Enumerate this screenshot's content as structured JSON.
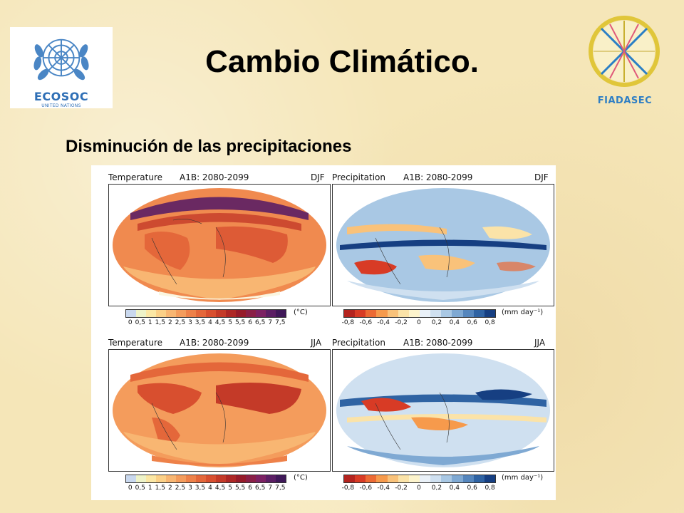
{
  "slide": {
    "title": "Cambio Climático.",
    "subtitle": "Disminución de las precipitaciones"
  },
  "logos": {
    "left": {
      "name": "ECOSOC",
      "org": "UNITED NATIONS",
      "icon": "un-emblem-icon"
    },
    "right": {
      "name": "FIADASEC",
      "icon": "fiadasec-wheel-icon"
    }
  },
  "figure": {
    "rows": [
      {
        "season": "DJF",
        "temperature": {
          "title": "Temperature",
          "scenario": "A1B: 2080-2099",
          "season": "DJF"
        },
        "precipitation": {
          "title": "Precipitation",
          "scenario": "A1B: 2080-2099",
          "season": "DJF"
        }
      },
      {
        "season": "JJA",
        "temperature": {
          "title": "Temperature",
          "scenario": "A1B: 2080-2099",
          "season": "JJA"
        },
        "precipitation": {
          "title": "Precipitation",
          "scenario": "A1B: 2080-2099",
          "season": "JJA"
        }
      }
    ],
    "temperature_scale": {
      "unit": "(°C)",
      "ticks": [
        "0",
        "0,5",
        "1",
        "1,5",
        "2",
        "2,5",
        "3",
        "3,5",
        "4",
        "4,5",
        "5",
        "5,5",
        "6",
        "6,5",
        "7",
        "7,5"
      ],
      "colors": [
        "#c9d8ee",
        "#eef3c8",
        "#fbe7a4",
        "#fbd087",
        "#f8b672",
        "#f49c5c",
        "#ee8149",
        "#e4673a",
        "#d84f2f",
        "#c43a28",
        "#ad2725",
        "#961b2a",
        "#8a1f47",
        "#7c2163",
        "#5b1e64",
        "#3f1858"
      ]
    },
    "precipitation_scale": {
      "unit": "(mm day⁻¹)",
      "ticks": [
        "-0,8",
        "-0,6",
        "-0,4",
        "-0,2",
        "0",
        "0,2",
        "0,4",
        "0,6",
        "0,8"
      ],
      "colors": [
        "#b4241f",
        "#d83b25",
        "#ec6a34",
        "#f69a4c",
        "#f9c27a",
        "#fbe3a8",
        "#fdf4cc",
        "#eaf1f8",
        "#cfe0f0",
        "#a9c8e4",
        "#7fa9d3",
        "#5586bd",
        "#2f63a3",
        "#163f82"
      ]
    }
  }
}
